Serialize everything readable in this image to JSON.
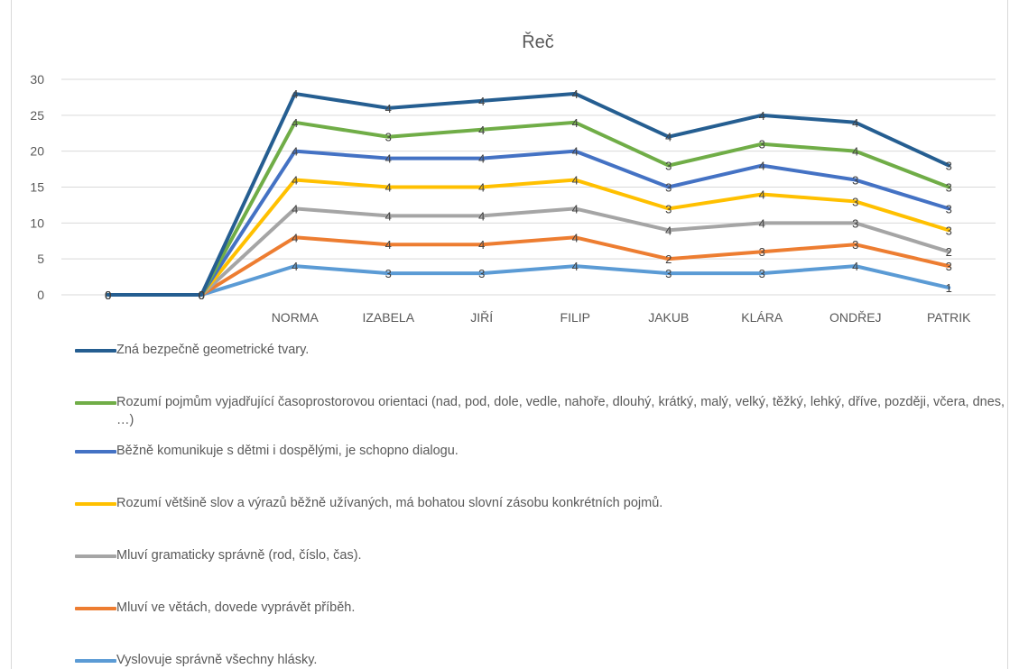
{
  "chart_data": {
    "type": "line",
    "title": "Řeč",
    "categories": [
      "",
      "",
      "NORMA",
      "IZABELA",
      "JIŘÍ",
      "FILIP",
      "JAKUB",
      "KLÁRA",
      "ONDŘEJ",
      "PATRIK"
    ],
    "ylim": [
      0,
      30
    ],
    "yticks": [
      0,
      5,
      10,
      15,
      20,
      25,
      30
    ],
    "grid": true,
    "legend_position": "bottom",
    "series": [
      {
        "name": "Zná bezpečně geometrické tvary.",
        "color": "#255E91",
        "values": [
          0,
          0,
          28,
          26,
          27,
          28,
          22,
          25,
          24,
          18
        ],
        "labels": [
          "0",
          "0",
          "4",
          "4",
          "4",
          "4",
          "4",
          "4",
          "4",
          "3"
        ]
      },
      {
        "name": "Rozumí pojmům vyjadřující časoprostorovou orientaci (nad, pod, dole, vedle, nahoře, dlouhý, krátký, malý, velký, těžký, lehký, dříve, později, včera, dnes, …)",
        "color": "#70AD47",
        "values": [
          0,
          0,
          24,
          22,
          23,
          24,
          18,
          21,
          20,
          15
        ],
        "labels": [
          "0",
          "0",
          "4",
          "3",
          "4",
          "4",
          "3",
          "3",
          "4",
          "3"
        ]
      },
      {
        "name": "Běžně komunikuje s dětmi i dospělými, je schopno dialogu.",
        "color": "#4472C4",
        "values": [
          0,
          0,
          20,
          19,
          19,
          20,
          15,
          18,
          16,
          12
        ],
        "labels": [
          "0",
          "0",
          "4",
          "4",
          "4",
          "4",
          "3",
          "4",
          "3",
          "3"
        ]
      },
      {
        "name": "Rozumí většině slov a výrazů běžně užívaných, má bohatou slovní zásobu konkrétních pojmů.",
        "color": "#FFC000",
        "values": [
          0,
          0,
          16,
          15,
          15,
          16,
          12,
          14,
          13,
          9
        ],
        "labels": [
          "0",
          "0",
          "4",
          "4",
          "4",
          "4",
          "3",
          "4",
          "3",
          "3"
        ]
      },
      {
        "name": "Mluví gramaticky správně (rod, číslo, čas).",
        "color": "#A5A5A5",
        "values": [
          0,
          0,
          12,
          11,
          11,
          12,
          9,
          10,
          10,
          6
        ],
        "labels": [
          "0",
          "0",
          "4",
          "4",
          "4",
          "4",
          "4",
          "4",
          "3",
          "2"
        ]
      },
      {
        "name": "Mluví ve větách, dovede vyprávět příběh.",
        "color": "#ED7D31",
        "values": [
          0,
          0,
          8,
          7,
          7,
          8,
          5,
          6,
          7,
          4
        ],
        "labels": [
          "0",
          "0",
          "4",
          "4",
          "4",
          "4",
          "2",
          "3",
          "3",
          "3"
        ]
      },
      {
        "name": "Vyslovuje správně všechny hlásky.",
        "color": "#5B9BD5",
        "values": [
          0,
          0,
          4,
          3,
          3,
          4,
          3,
          3,
          4,
          1
        ],
        "labels": [
          "0",
          "0",
          "4",
          "3",
          "3",
          "4",
          "3",
          "3",
          "4",
          "1"
        ]
      }
    ]
  }
}
